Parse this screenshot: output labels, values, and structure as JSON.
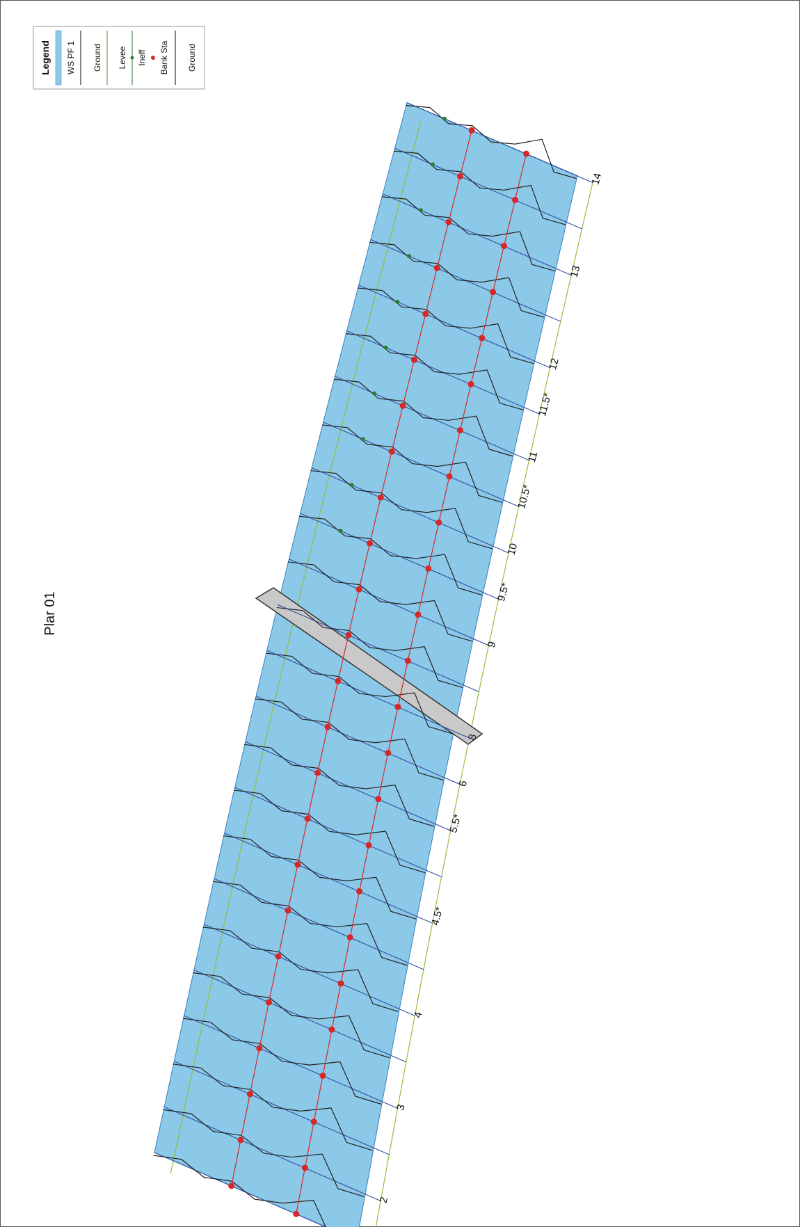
{
  "plan_title": "Plar 01",
  "legend": {
    "title": "Legend",
    "items": [
      {
        "label": "WS PF 1",
        "kind": "fill",
        "color": "#8cc8e8"
      },
      {
        "label": "Ground",
        "kind": "line",
        "color": "#333333"
      },
      {
        "label": "Levee",
        "kind": "line",
        "color": "#6a8a3a"
      },
      {
        "label": "Ineff",
        "kind": "dotline",
        "color": "#2e7d32"
      },
      {
        "label": "Bank Sta",
        "kind": "dot",
        "color": "#d62828"
      },
      {
        "label": "Ground",
        "kind": "line",
        "color": "#333333"
      }
    ]
  },
  "colors": {
    "water": "#8cc8e8",
    "water_edge": "#3a7fc0",
    "xs_line": "#2f4fa3",
    "ground": "#222222",
    "bank": "#d62828",
    "ineff": "#2e7d32",
    "levee": "#8fbf3f",
    "bridge": "#c9c9c9"
  },
  "cross_sections": [
    {
      "label": "",
      "rs": 0
    },
    {
      "label": "2",
      "rs": 1
    },
    {
      "label": "",
      "rs": 2
    },
    {
      "label": "3",
      "rs": 3
    },
    {
      "label": "",
      "rs": 4
    },
    {
      "label": "4",
      "rs": 5
    },
    {
      "label": "",
      "rs": 6
    },
    {
      "label": "4.5*",
      "rs": 7
    },
    {
      "label": "",
      "rs": 8
    },
    {
      "label": "5.5*",
      "rs": 9
    },
    {
      "label": "6",
      "rs": 10
    },
    {
      "label": "8",
      "rs": 11
    },
    {
      "label": "",
      "rs": 12
    },
    {
      "label": "9",
      "rs": 13
    },
    {
      "label": "9.5*",
      "rs": 14
    },
    {
      "label": "10",
      "rs": 15
    },
    {
      "label": "10.5*",
      "rs": 16
    },
    {
      "label": "11",
      "rs": 17
    },
    {
      "label": "11.5*",
      "rs": 18
    },
    {
      "label": "12",
      "rs": 19
    },
    {
      "label": "",
      "rs": 20
    },
    {
      "label": "13",
      "rs": 21
    },
    {
      "label": "",
      "rs": 22
    },
    {
      "label": "14",
      "rs": 23
    }
  ]
}
